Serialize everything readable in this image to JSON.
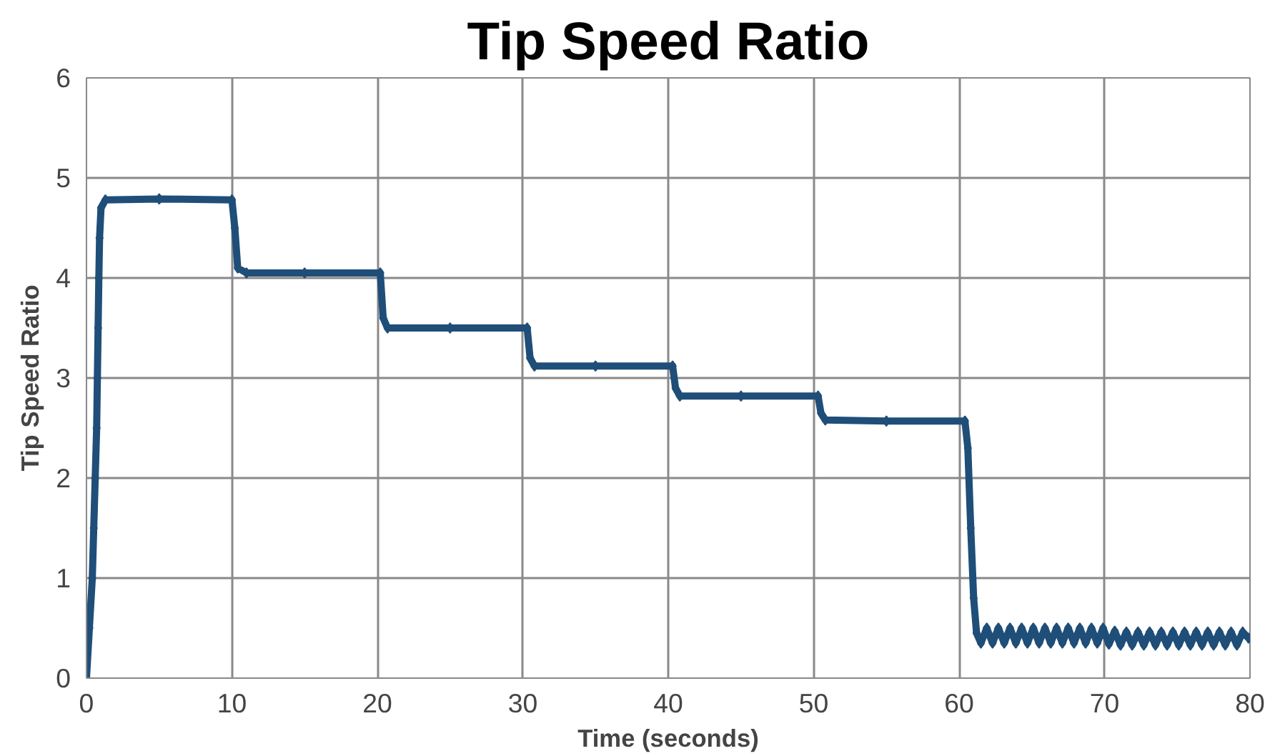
{
  "chart_data": {
    "type": "line",
    "title": "Tip Speed Ratio",
    "xlabel": "Time (seconds)",
    "ylabel": "Tip Speed Ratio",
    "xlim": [
      0,
      80
    ],
    "xticks": [
      0,
      10,
      20,
      30,
      40,
      50,
      60,
      70,
      80
    ],
    "ylim": [
      0,
      6
    ],
    "yticks": [
      0,
      1,
      2,
      3,
      4,
      5,
      6
    ],
    "grid": true,
    "marker": "diamond",
    "series": [
      {
        "color": "#1f4e79",
        "x": [
          0,
          0.2,
          0.4,
          0.5,
          0.6,
          0.7,
          0.75,
          0.8,
          0.85,
          0.9,
          1.0,
          1.3,
          5,
          10,
          10.2,
          10.4,
          11,
          15,
          20.2,
          20.4,
          20.7,
          25,
          30.3,
          30.5,
          30.8,
          35,
          40.3,
          40.5,
          40.8,
          45,
          50.3,
          50.5,
          50.8,
          55,
          60.4,
          60.6,
          60.8,
          61,
          61.2,
          61.5,
          61.9,
          62.3,
          62.7,
          63.1,
          63.5,
          63.9,
          64.3,
          64.7,
          65.1,
          65.5,
          65.9,
          66.3,
          66.7,
          67.1,
          67.5,
          67.9,
          68.3,
          68.7,
          69.1,
          69.5,
          69.9,
          70.3,
          70.7,
          71.1,
          71.5,
          71.9,
          72.3,
          72.7,
          73.1,
          73.5,
          73.9,
          74.3,
          74.7,
          75.1,
          75.5,
          75.9,
          76.3,
          76.7,
          77.1,
          77.5,
          77.9,
          78.3,
          78.7,
          79.1,
          79.5,
          79.9
        ],
        "values": [
          0,
          0.5,
          1.0,
          1.5,
          2.0,
          2.5,
          3.0,
          3.5,
          4.0,
          4.4,
          4.7,
          4.78,
          4.79,
          4.78,
          4.5,
          4.1,
          4.05,
          4.05,
          4.05,
          3.6,
          3.5,
          3.5,
          3.5,
          3.2,
          3.12,
          3.12,
          3.12,
          2.9,
          2.82,
          2.82,
          2.82,
          2.65,
          2.58,
          2.57,
          2.57,
          2.3,
          1.5,
          0.8,
          0.45,
          0.35,
          0.5,
          0.35,
          0.5,
          0.35,
          0.5,
          0.35,
          0.5,
          0.35,
          0.5,
          0.35,
          0.5,
          0.35,
          0.5,
          0.35,
          0.5,
          0.35,
          0.5,
          0.35,
          0.5,
          0.35,
          0.5,
          0.34,
          0.47,
          0.33,
          0.46,
          0.33,
          0.46,
          0.33,
          0.46,
          0.33,
          0.46,
          0.33,
          0.46,
          0.33,
          0.46,
          0.33,
          0.46,
          0.33,
          0.46,
          0.33,
          0.46,
          0.33,
          0.46,
          0.33,
          0.46,
          0.4
        ]
      }
    ]
  }
}
